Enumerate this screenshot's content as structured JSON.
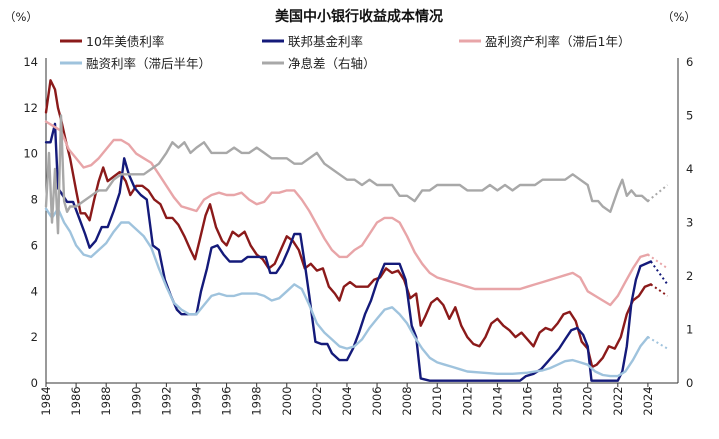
{
  "chart_data": {
    "type": "line",
    "title": "美国中小银行收益成本情况",
    "unit_left": "（%）",
    "unit_right": "（%）",
    "left_axis": {
      "ylim": [
        0,
        14
      ],
      "ticks": [
        0,
        2,
        4,
        6,
        8,
        10,
        12,
        14
      ]
    },
    "right_axis": {
      "ylim": [
        0,
        6
      ],
      "ticks": [
        0,
        1,
        2,
        3,
        4,
        5,
        6
      ]
    },
    "x_axis": {
      "xlim": [
        1984,
        2026
      ],
      "ticks": [
        "1984",
        "1986",
        "1988",
        "1990",
        "1992",
        "1994",
        "1996",
        "1998",
        "2000",
        "2002",
        "2004",
        "2006",
        "2008",
        "2010",
        "2012",
        "2014",
        "2016",
        "2018",
        "2020",
        "2022",
        "2024"
      ]
    },
    "grid": false,
    "legend_position": "top",
    "series": [
      {
        "name": "10年美债利率",
        "axis": "left",
        "color": "#8b1a1a",
        "x": [
          1984.0,
          1984.3,
          1984.6,
          1984.8,
          1985.0,
          1985.3,
          1985.6,
          1986.0,
          1986.3,
          1986.6,
          1986.9,
          1987.2,
          1987.5,
          1987.8,
          1988.1,
          1988.5,
          1988.9,
          1989.3,
          1989.6,
          1990.0,
          1990.4,
          1990.8,
          1991.2,
          1991.6,
          1992.0,
          1992.4,
          1992.8,
          1993.2,
          1993.6,
          1993.9,
          1994.2,
          1994.6,
          1994.9,
          1995.3,
          1995.7,
          1996.0,
          1996.4,
          1996.8,
          1997.2,
          1997.6,
          1998.0,
          1998.4,
          1998.8,
          1999.2,
          1999.6,
          2000.0,
          2000.4,
          2000.8,
          2001.2,
          2001.6,
          2002.0,
          2002.4,
          2002.8,
          2003.2,
          2003.5,
          2003.8,
          2004.2,
          2004.6,
          2005.0,
          2005.4,
          2005.8,
          2006.2,
          2006.6,
          2007.0,
          2007.4,
          2007.8,
          2008.2,
          2008.6,
          2008.9,
          2009.2,
          2009.6,
          2010.0,
          2010.4,
          2010.8,
          2011.2,
          2011.6,
          2012.0,
          2012.4,
          2012.8,
          2013.2,
          2013.6,
          2014.0,
          2014.4,
          2014.8,
          2015.2,
          2015.6,
          2016.0,
          2016.4,
          2016.8,
          2017.2,
          2017.6,
          2018.0,
          2018.4,
          2018.8,
          2019.2,
          2019.6,
          2020.0,
          2020.3,
          2020.6,
          2021.0,
          2021.4,
          2021.8,
          2022.2,
          2022.6,
          2023.0,
          2023.4,
          2023.8,
          2024.2
        ],
        "y": [
          11.8,
          13.2,
          12.8,
          12.0,
          11.5,
          10.6,
          9.8,
          8.4,
          7.4,
          7.4,
          7.1,
          8.0,
          8.8,
          9.4,
          8.8,
          9.0,
          9.2,
          8.8,
          8.2,
          8.6,
          8.6,
          8.4,
          8.0,
          7.8,
          7.2,
          7.2,
          6.9,
          6.4,
          5.8,
          5.4,
          6.2,
          7.3,
          7.8,
          6.8,
          6.2,
          6.0,
          6.6,
          6.4,
          6.6,
          6.0,
          5.6,
          5.4,
          5.0,
          5.2,
          5.8,
          6.4,
          6.2,
          5.8,
          5.0,
          5.2,
          4.9,
          5.0,
          4.2,
          3.9,
          3.6,
          4.2,
          4.4,
          4.2,
          4.2,
          4.2,
          4.5,
          4.6,
          5.0,
          4.8,
          4.9,
          4.5,
          3.7,
          3.9,
          2.5,
          2.9,
          3.5,
          3.7,
          3.4,
          2.8,
          3.3,
          2.5,
          2.0,
          1.7,
          1.6,
          2.0,
          2.6,
          2.8,
          2.5,
          2.3,
          2.0,
          2.2,
          1.9,
          1.6,
          2.2,
          2.4,
          2.3,
          2.6,
          3.0,
          3.1,
          2.7,
          1.8,
          1.5,
          0.7,
          0.8,
          1.1,
          1.6,
          1.5,
          2.0,
          3.0,
          3.6,
          3.8,
          4.2,
          4.3
        ],
        "projection": {
          "x": [
            2024.2,
            2025.3
          ],
          "y": [
            4.3,
            3.8
          ]
        }
      },
      {
        "name": "联邦基金利率",
        "axis": "left",
        "color": "#141a7a",
        "x": [
          1984.0,
          1984.3,
          1984.6,
          1984.8,
          1985.0,
          1985.4,
          1985.8,
          1986.2,
          1986.6,
          1986.9,
          1987.3,
          1987.7,
          1988.1,
          1988.5,
          1988.9,
          1989.2,
          1989.5,
          1989.9,
          1990.3,
          1990.7,
          1991.1,
          1991.5,
          1991.9,
          1992.3,
          1992.7,
          1993.0,
          1993.5,
          1994.0,
          1994.3,
          1994.7,
          1995.0,
          1995.4,
          1995.8,
          1996.2,
          1996.6,
          1997.0,
          1997.4,
          1997.8,
          1998.2,
          1998.6,
          1998.9,
          1999.3,
          1999.7,
          2000.1,
          2000.5,
          2000.9,
          2001.2,
          2001.5,
          2001.9,
          2002.3,
          2002.7,
          2003.0,
          2003.5,
          2004.0,
          2004.4,
          2004.8,
          2005.2,
          2005.6,
          2006.0,
          2006.5,
          2007.0,
          2007.5,
          2007.9,
          2008.3,
          2008.6,
          2008.9,
          2009.5,
          2010.5,
          2011.5,
          2012.5,
          2013.5,
          2014.5,
          2015.5,
          2015.9,
          2016.4,
          2016.9,
          2017.3,
          2017.7,
          2018.1,
          2018.5,
          2018.9,
          2019.3,
          2019.7,
          2020.0,
          2020.25,
          2020.6,
          2021.5,
          2022.0,
          2022.3,
          2022.6,
          2022.9,
          2023.2,
          2023.5,
          2024.2
        ],
        "y": [
          10.5,
          10.5,
          11.3,
          8.5,
          8.3,
          7.9,
          7.9,
          7.2,
          6.5,
          5.9,
          6.2,
          6.8,
          6.8,
          7.5,
          8.3,
          9.8,
          9.1,
          8.5,
          8.2,
          8.0,
          6.0,
          5.8,
          4.5,
          3.8,
          3.2,
          3.0,
          3.0,
          3.0,
          4.0,
          5.0,
          5.9,
          6.0,
          5.6,
          5.3,
          5.3,
          5.3,
          5.5,
          5.5,
          5.5,
          5.5,
          4.8,
          4.8,
          5.2,
          5.8,
          6.5,
          6.5,
          5.2,
          3.8,
          1.8,
          1.7,
          1.7,
          1.3,
          1.0,
          1.0,
          1.5,
          2.2,
          3.0,
          3.6,
          4.4,
          5.2,
          5.2,
          5.2,
          4.5,
          2.5,
          2.0,
          0.2,
          0.1,
          0.1,
          0.1,
          0.1,
          0.1,
          0.1,
          0.1,
          0.3,
          0.4,
          0.6,
          0.9,
          1.2,
          1.5,
          1.9,
          2.3,
          2.4,
          2.1,
          1.6,
          0.1,
          0.1,
          0.1,
          0.1,
          0.5,
          1.6,
          3.5,
          4.5,
          5.1,
          5.3
        ],
        "projection": {
          "x": [
            2024.2,
            2025.3
          ],
          "y": [
            5.3,
            4.3
          ]
        }
      },
      {
        "name": "盈利资产利率（滞后1年）",
        "axis": "left",
        "color": "#e8a5a8",
        "x": [
          1984.0,
          1984.5,
          1985.0,
          1985.5,
          1986.0,
          1986.5,
          1987.0,
          1987.5,
          1988.0,
          1988.5,
          1989.0,
          1989.5,
          1990.0,
          1990.5,
          1991.0,
          1991.5,
          1992.0,
          1992.5,
          1993.0,
          1993.5,
          1994.0,
          1994.5,
          1995.0,
          1995.5,
          1996.0,
          1996.5,
          1997.0,
          1997.5,
          1998.0,
          1998.5,
          1999.0,
          1999.5,
          2000.0,
          2000.5,
          2001.0,
          2001.5,
          2002.0,
          2002.5,
          2003.0,
          2003.5,
          2004.0,
          2004.5,
          2005.0,
          2005.5,
          2006.0,
          2006.5,
          2007.0,
          2007.5,
          2008.0,
          2008.5,
          2009.0,
          2009.5,
          2010.0,
          2010.5,
          2011.0,
          2011.5,
          2012.0,
          2012.5,
          2013.0,
          2013.5,
          2014.0,
          2014.5,
          2015.0,
          2015.5,
          2016.0,
          2016.5,
          2017.0,
          2017.5,
          2018.0,
          2018.5,
          2019.0,
          2019.5,
          2020.0,
          2020.5,
          2021.0,
          2021.5,
          2022.0,
          2022.5,
          2023.0,
          2023.5,
          2024.0
        ],
        "y": [
          11.4,
          11.2,
          11.0,
          10.2,
          9.8,
          9.4,
          9.5,
          9.8,
          10.2,
          10.6,
          10.6,
          10.4,
          10.0,
          9.8,
          9.6,
          9.1,
          8.6,
          8.1,
          7.7,
          7.6,
          7.5,
          8.0,
          8.2,
          8.3,
          8.2,
          8.2,
          8.3,
          8.0,
          7.8,
          7.9,
          8.3,
          8.3,
          8.4,
          8.4,
          8.0,
          7.5,
          6.9,
          6.3,
          5.8,
          5.5,
          5.5,
          5.8,
          6.0,
          6.5,
          7.0,
          7.2,
          7.2,
          7.0,
          6.4,
          5.7,
          5.2,
          4.8,
          4.6,
          4.5,
          4.4,
          4.3,
          4.2,
          4.1,
          4.1,
          4.1,
          4.1,
          4.1,
          4.1,
          4.1,
          4.2,
          4.3,
          4.4,
          4.5,
          4.6,
          4.7,
          4.8,
          4.6,
          4.0,
          3.8,
          3.6,
          3.4,
          3.8,
          4.4,
          5.0,
          5.5,
          5.6
        ],
        "projection": {
          "x": [
            2024.0,
            2025.3
          ],
          "y": [
            5.6,
            5.0
          ]
        }
      },
      {
        "name": "融资利率（滞后半年）",
        "axis": "left",
        "color": "#9fc3dd",
        "x": [
          1984.0,
          1984.4,
          1984.8,
          1985.2,
          1985.6,
          1986.0,
          1986.5,
          1987.0,
          1987.5,
          1988.0,
          1988.5,
          1989.0,
          1989.5,
          1990.0,
          1990.5,
          1991.0,
          1991.5,
          1992.0,
          1992.5,
          1993.0,
          1993.5,
          1994.0,
          1994.5,
          1995.0,
          1995.5,
          1996.0,
          1996.5,
          1997.0,
          1997.5,
          1998.0,
          1998.5,
          1999.0,
          1999.5,
          2000.0,
          2000.5,
          2001.0,
          2001.5,
          2002.0,
          2002.5,
          2003.0,
          2003.5,
          2004.0,
          2004.5,
          2005.0,
          2005.5,
          2006.0,
          2006.5,
          2007.0,
          2007.5,
          2008.0,
          2008.5,
          2009.0,
          2009.5,
          2010.0,
          2010.5,
          2011.0,
          2011.5,
          2012.0,
          2013.0,
          2014.0,
          2015.0,
          2016.0,
          2016.5,
          2017.0,
          2017.5,
          2018.0,
          2018.5,
          2019.0,
          2019.5,
          2020.0,
          2020.5,
          2021.0,
          2021.5,
          2022.0,
          2022.5,
          2023.0,
          2023.5,
          2024.0
        ],
        "y": [
          7.6,
          7.2,
          7.6,
          7.0,
          6.6,
          6.0,
          5.6,
          5.5,
          5.8,
          6.1,
          6.6,
          7.0,
          7.0,
          6.7,
          6.4,
          5.9,
          5.0,
          4.2,
          3.5,
          3.2,
          3.0,
          3.0,
          3.4,
          3.8,
          3.9,
          3.8,
          3.8,
          3.9,
          3.9,
          3.9,
          3.8,
          3.6,
          3.7,
          4.0,
          4.3,
          4.1,
          3.4,
          2.6,
          2.2,
          1.9,
          1.6,
          1.5,
          1.6,
          1.9,
          2.4,
          2.8,
          3.2,
          3.3,
          3.0,
          2.6,
          2.0,
          1.5,
          1.1,
          0.9,
          0.8,
          0.7,
          0.6,
          0.5,
          0.45,
          0.4,
          0.4,
          0.45,
          0.5,
          0.55,
          0.65,
          0.8,
          0.95,
          1.0,
          0.9,
          0.8,
          0.5,
          0.35,
          0.3,
          0.3,
          0.5,
          1.0,
          1.6,
          2.0
        ],
        "projection": {
          "x": [
            2024.0,
            2025.3
          ],
          "y": [
            2.0,
            1.5
          ]
        }
      },
      {
        "name": "净息差（右轴）",
        "axis": "right",
        "color": "#a8a8a8",
        "x": [
          1984.0,
          1984.2,
          1984.4,
          1984.6,
          1984.8,
          1985.0,
          1985.2,
          1985.4,
          1985.6,
          1986.0,
          1986.5,
          1987.0,
          1987.5,
          1988.0,
          1988.5,
          1989.0,
          1989.5,
          1990.0,
          1990.5,
          1991.0,
          1991.5,
          1992.0,
          1992.4,
          1992.8,
          1993.2,
          1993.6,
          1994.0,
          1994.5,
          1995.0,
          1995.5,
          1996.0,
          1996.5,
          1997.0,
          1997.5,
          1998.0,
          1998.5,
          1999.0,
          1999.5,
          2000.0,
          2000.5,
          2001.0,
          2001.5,
          2002.0,
          2002.5,
          2003.0,
          2003.5,
          2004.0,
          2004.5,
          2005.0,
          2005.5,
          2006.0,
          2006.5,
          2007.0,
          2007.5,
          2008.0,
          2008.5,
          2009.0,
          2009.5,
          2010.0,
          2010.5,
          2011.0,
          2011.5,
          2012.0,
          2012.5,
          2013.0,
          2013.5,
          2014.0,
          2014.5,
          2015.0,
          2015.5,
          2016.0,
          2016.5,
          2017.0,
          2017.5,
          2018.0,
          2018.5,
          2019.0,
          2019.5,
          2020.0,
          2020.3,
          2020.7,
          2021.0,
          2021.5,
          2022.0,
          2022.3,
          2022.6,
          2022.9,
          2023.2,
          2023.6,
          2024.0
        ],
        "y": [
          3.3,
          4.3,
          3.0,
          4.0,
          2.8,
          5.0,
          3.4,
          3.2,
          3.3,
          3.3,
          3.4,
          3.5,
          3.6,
          3.6,
          3.8,
          3.9,
          3.9,
          3.9,
          3.9,
          4.0,
          4.1,
          4.3,
          4.5,
          4.4,
          4.5,
          4.3,
          4.4,
          4.5,
          4.3,
          4.3,
          4.3,
          4.4,
          4.3,
          4.3,
          4.4,
          4.3,
          4.2,
          4.2,
          4.2,
          4.1,
          4.1,
          4.2,
          4.3,
          4.1,
          4.0,
          3.9,
          3.8,
          3.8,
          3.7,
          3.8,
          3.7,
          3.7,
          3.7,
          3.5,
          3.5,
          3.4,
          3.6,
          3.6,
          3.7,
          3.7,
          3.7,
          3.7,
          3.6,
          3.6,
          3.6,
          3.7,
          3.6,
          3.7,
          3.6,
          3.7,
          3.7,
          3.7,
          3.8,
          3.8,
          3.8,
          3.8,
          3.9,
          3.8,
          3.7,
          3.4,
          3.4,
          3.3,
          3.2,
          3.6,
          3.8,
          3.5,
          3.6,
          3.5,
          3.5,
          3.4
        ],
        "projection": {
          "x": [
            2024.0,
            2025.3
          ],
          "y": [
            3.4,
            3.7
          ]
        }
      }
    ]
  }
}
